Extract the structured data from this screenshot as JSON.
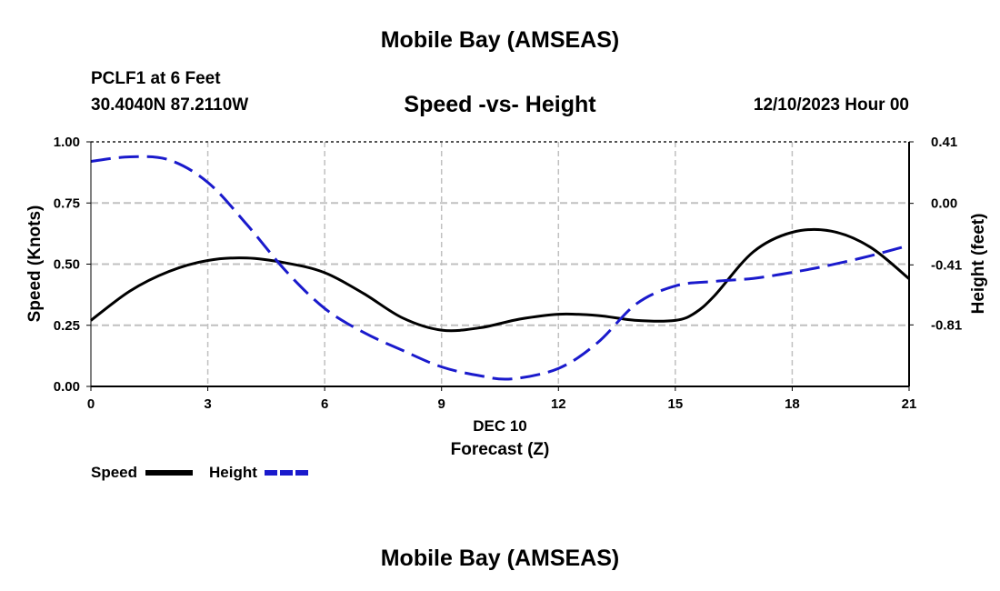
{
  "header": {
    "title": "Mobile Bay (AMSEAS)",
    "station": "PCLF1 at 6 Feet",
    "coords": "30.4040N  87.2110W",
    "subtitle": "Speed -vs- Height",
    "datetime": "12/10/2023 Hour 00"
  },
  "footer": {
    "title": "Mobile Bay (AMSEAS)"
  },
  "colors": {
    "speed": "#000000",
    "height": "#1a1acc",
    "grid": "#c0c0c0"
  },
  "chart_data": {
    "type": "line",
    "title": "Speed -vs- Height",
    "xlabel": "Forecast (Z)",
    "xlabel_date": "DEC 10",
    "ylabel": "Speed (Knots)",
    "y2label": "Height (feet)",
    "xlim": [
      0,
      21
    ],
    "ylim": [
      0,
      1
    ],
    "y2lim": [
      -1.22,
      0.41
    ],
    "x_ticks": [
      0,
      3,
      6,
      9,
      12,
      15,
      18,
      21
    ],
    "y_ticks": [
      0,
      0.25,
      0.5,
      0.75,
      1.0
    ],
    "y_tick_labels": [
      "0.00",
      "0.25",
      "0.50",
      "0.75",
      "1.00"
    ],
    "y2_ticks": [
      0.41,
      0.0,
      -0.41,
      -0.81
    ],
    "y2_tick_labels": [
      "0.41",
      "0.00",
      "-0.41",
      "-0.81"
    ],
    "grid": true,
    "legend_position": "bottom-left",
    "series": [
      {
        "name": "Speed",
        "axis": "left",
        "style": "solid",
        "x": [
          0,
          1,
          2,
          3,
          4,
          5,
          6,
          7,
          8,
          9,
          10,
          11,
          12,
          13,
          14,
          15,
          15.5,
          16,
          17,
          18,
          19,
          20,
          21
        ],
        "values": [
          0.27,
          0.39,
          0.47,
          0.515,
          0.525,
          0.505,
          0.465,
          0.38,
          0.28,
          0.23,
          0.24,
          0.275,
          0.295,
          0.29,
          0.27,
          0.27,
          0.3,
          0.37,
          0.55,
          0.63,
          0.635,
          0.57,
          0.44
        ]
      },
      {
        "name": "Height",
        "axis": "right",
        "style": "dashed",
        "x": [
          0,
          1,
          2,
          3,
          4,
          5,
          6,
          7,
          8,
          9,
          10,
          10.8,
          12,
          13,
          14,
          15,
          16,
          17,
          18,
          19,
          20,
          21
        ],
        "values": [
          0.28,
          0.31,
          0.29,
          0.14,
          -0.14,
          -0.45,
          -0.7,
          -0.86,
          -0.98,
          -1.09,
          -1.15,
          -1.17,
          -1.1,
          -0.93,
          -0.67,
          -0.55,
          -0.52,
          -0.5,
          -0.46,
          -0.41,
          -0.35,
          -0.28
        ]
      }
    ]
  }
}
